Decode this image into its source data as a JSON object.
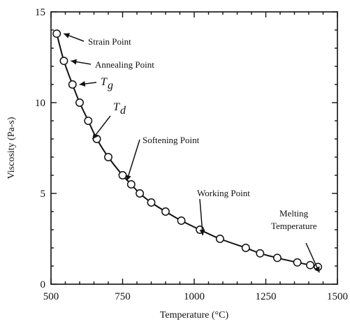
{
  "chart_data": {
    "type": "line",
    "xlabel": "Temperature   (°C)",
    "ylabel": "Viscosity   (Pa-s)",
    "xlim": [
      500,
      1500
    ],
    "ylim": [
      0,
      15
    ],
    "xticks": [
      "500",
      "750",
      "1000",
      "1250",
      "1500"
    ],
    "yticks": [
      "0",
      "5",
      "10",
      "15"
    ],
    "grid": false,
    "series": [
      {
        "marker": "open-circle",
        "x": [
          520,
          545,
          575,
          600,
          630,
          660,
          700,
          750,
          780,
          810,
          850,
          900,
          955,
          1020,
          1090,
          1180,
          1230,
          1290,
          1360,
          1405,
          1432
        ],
        "y": [
          13.8,
          12.3,
          11.0,
          10.0,
          9.0,
          8.0,
          7.0,
          6.0,
          5.5,
          5.0,
          4.5,
          4.0,
          3.5,
          3.0,
          2.5,
          2.0,
          1.7,
          1.45,
          1.2,
          1.05,
          0.95
        ]
      }
    ],
    "annotations": [
      {
        "text": "Strain Point",
        "x": 520,
        "y": 13.8
      },
      {
        "text": "Annealing Point",
        "x": 545,
        "y": 12.3
      },
      {
        "text": "T",
        "sub": "g",
        "x": 575,
        "y": 11.0
      },
      {
        "text": "T",
        "sub": "d",
        "x": 630,
        "y": 8.3
      },
      {
        "text": "Softening Point",
        "x": 750,
        "y": 6.0
      },
      {
        "text": "Working Point",
        "x": 1020,
        "y": 3.0
      },
      {
        "text": "Melting",
        "text2": "Temperature",
        "x": 1432,
        "y": 0.95
      }
    ]
  }
}
